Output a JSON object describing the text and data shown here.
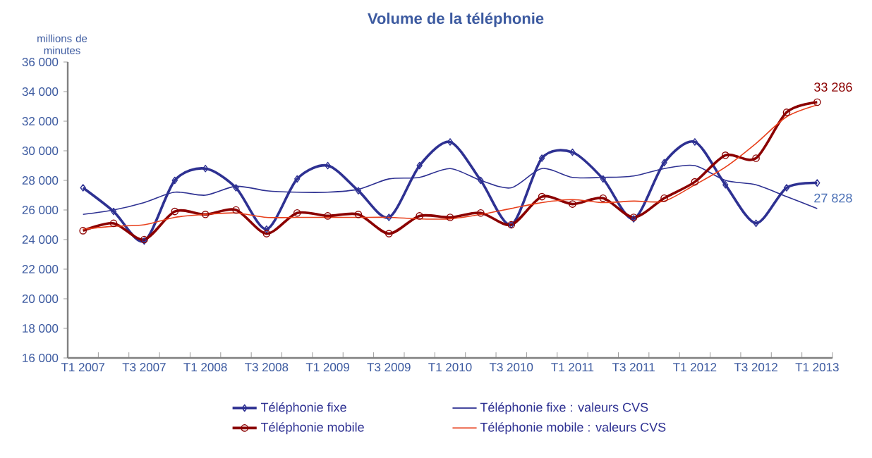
{
  "chart_data": {
    "type": "line",
    "title": "Volume de la téléphonie",
    "ylabel": "millions de minutes",
    "categories": [
      "T1 2007",
      null,
      "T3 2007",
      null,
      "T1 2008",
      null,
      "T3 2008",
      null,
      "T1 2009",
      null,
      "T3 2009",
      null,
      "T1 2010",
      null,
      "T3 2010",
      null,
      "T1 2011",
      null,
      "T3 2011",
      null,
      "T1 2012",
      null,
      "T3 2012",
      null,
      "T1 2013"
    ],
    "series": [
      {
        "name": "Téléphonie fixe",
        "color": "#2e3192",
        "marker": "diamond",
        "values": [
          27500,
          25900,
          23900,
          28000,
          28800,
          27500,
          24700,
          28100,
          29000,
          27300,
          25500,
          29000,
          30600,
          28000,
          25000,
          29500,
          29900,
          28100,
          25400,
          29200,
          30600,
          27700,
          25100,
          27500,
          27828
        ]
      },
      {
        "name": "Téléphonie fixe : valeurs CVS",
        "color": "#2e3192",
        "marker": "none",
        "values": [
          25700,
          26000,
          26500,
          27200,
          27000,
          27600,
          27300,
          27200,
          27200,
          27400,
          28100,
          28200,
          28800,
          28000,
          27500,
          28800,
          28200,
          28200,
          28300,
          28800,
          29000,
          28000,
          27700,
          26900,
          26100
        ]
      },
      {
        "name": "Téléphonie mobile",
        "color": "#8b0000",
        "marker": "circle",
        "values": [
          24600,
          25100,
          24000,
          25900,
          25700,
          26000,
          24400,
          25800,
          25600,
          25700,
          24400,
          25600,
          25500,
          25800,
          25000,
          26900,
          26400,
          26800,
          25500,
          26800,
          27900,
          29700,
          29500,
          32600,
          33286
        ]
      },
      {
        "name": "Téléphonie mobile : valeurs CVS",
        "color": "#e8401c",
        "marker": "none",
        "values": [
          24700,
          24900,
          25000,
          25500,
          25700,
          25800,
          25500,
          25500,
          25500,
          25500,
          25500,
          25400,
          25400,
          25700,
          26100,
          26500,
          26700,
          26500,
          26600,
          26600,
          27700,
          28900,
          30500,
          32300,
          33100
        ]
      }
    ],
    "ylim": [
      16000,
      36000
    ],
    "yticks": [
      {
        "value": 16000,
        "label": "16 000"
      },
      {
        "value": 18000,
        "label": "18 000"
      },
      {
        "value": 20000,
        "label": "20 000"
      },
      {
        "value": 22000,
        "label": "22 000"
      },
      {
        "value": 24000,
        "label": "24 000"
      },
      {
        "value": 26000,
        "label": "26 000"
      },
      {
        "value": 28000,
        "label": "28 000"
      },
      {
        "value": 30000,
        "label": "30 000"
      },
      {
        "value": 32000,
        "label": "32 000"
      },
      {
        "value": 34000,
        "label": "34 000"
      },
      {
        "value": 36000,
        "label": "36 000"
      }
    ],
    "annotations": [
      {
        "text": "33 286",
        "x": "T1 2013",
        "y": 33286
      },
      {
        "text": "27 828",
        "x": "T1 2013",
        "y": 27828
      }
    ],
    "legend": "bottom",
    "grid": false
  }
}
